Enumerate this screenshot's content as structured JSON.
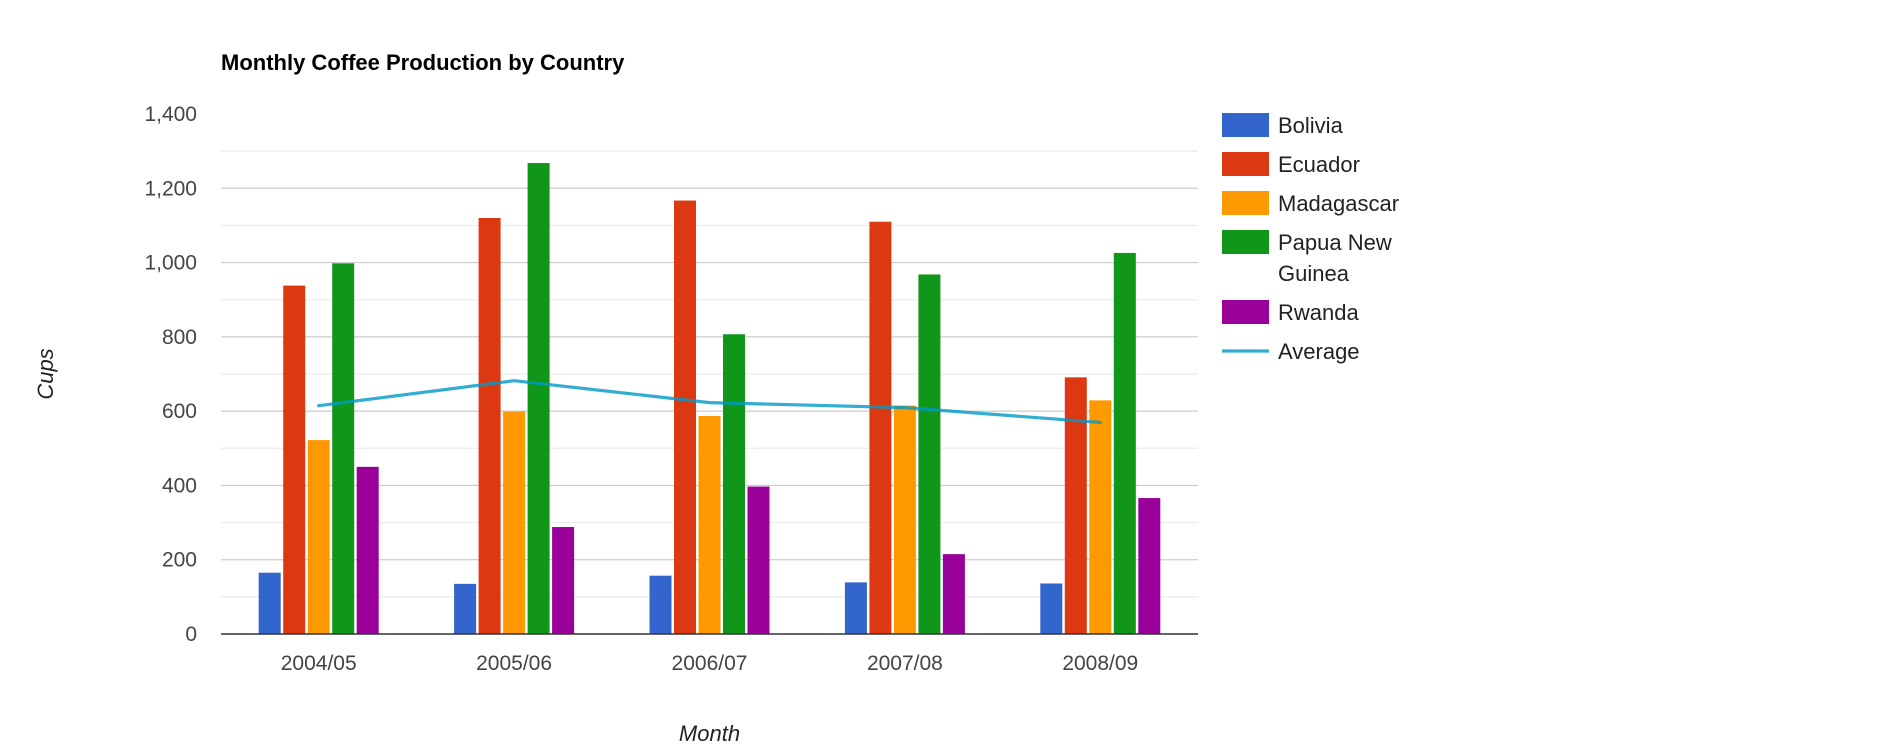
{
  "chart_data": {
    "type": "bar",
    "title": "Monthly Coffee Production by Country",
    "xlabel": "Month",
    "ylabel": "Cups",
    "categories": [
      "2004/05",
      "2005/06",
      "2006/07",
      "2007/08",
      "2008/09"
    ],
    "ylim": [
      0,
      1400
    ],
    "yticks": [
      0,
      200,
      400,
      600,
      800,
      1000,
      1200,
      1400
    ],
    "yticks_labels": [
      "0",
      "200",
      "400",
      "600",
      "800",
      "1,000",
      "1,200",
      "1,400"
    ],
    "grid": true,
    "legend_position": "right",
    "series": [
      {
        "name": "Bolivia",
        "type": "bar",
        "color": "#3366cc",
        "values": [
          165,
          135,
          157,
          139,
          136
        ]
      },
      {
        "name": "Ecuador",
        "type": "bar",
        "color": "#dc3912",
        "values": [
          938,
          1120,
          1167,
          1110,
          691
        ]
      },
      {
        "name": "Madagascar",
        "type": "bar",
        "color": "#ff9900",
        "values": [
          522,
          599,
          587,
          615,
          629
        ]
      },
      {
        "name": "Papua New Guinea",
        "legend_lines": [
          "Papua New",
          "Guinea"
        ],
        "type": "bar",
        "color": "#109618",
        "values": [
          998,
          1268,
          807,
          968,
          1026
        ]
      },
      {
        "name": "Rwanda",
        "type": "bar",
        "color": "#990099",
        "values": [
          450,
          288,
          397,
          215,
          366
        ]
      },
      {
        "name": "Average",
        "type": "line",
        "color": "#0099c6",
        "values": [
          614.6,
          682,
          623,
          609.4,
          569.6
        ]
      }
    ]
  }
}
